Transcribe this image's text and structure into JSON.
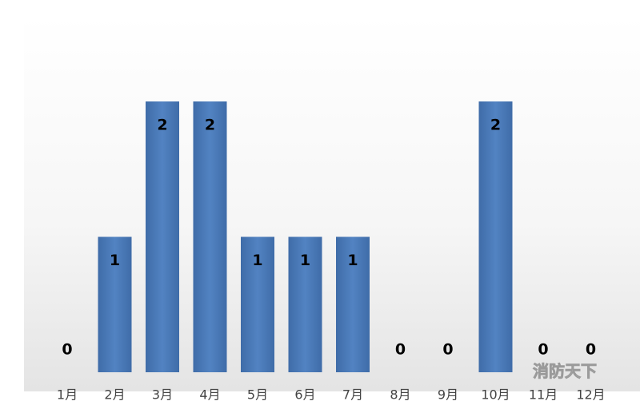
{
  "chart_data": {
    "type": "bar",
    "categories": [
      "1月",
      "2月",
      "3月",
      "4月",
      "5月",
      "6月",
      "7月",
      "8月",
      "9月",
      "10月",
      "11月",
      "12月"
    ],
    "values": [
      0,
      1,
      2,
      2,
      1,
      1,
      1,
      0,
      0,
      2,
      0,
      0
    ],
    "color": "#4a7ab8",
    "ylim": [
      0,
      2
    ],
    "watermark": "消防天下"
  }
}
